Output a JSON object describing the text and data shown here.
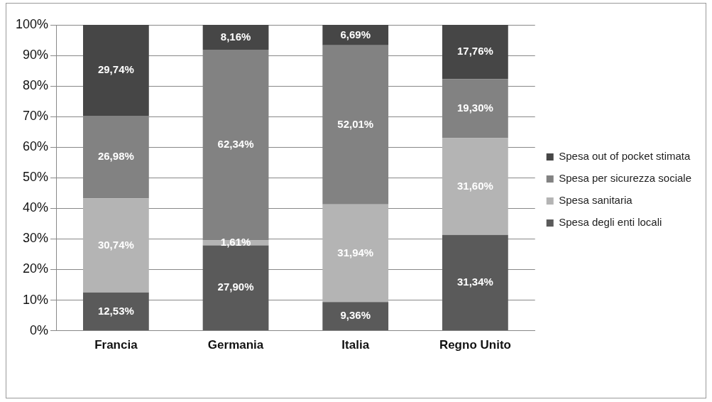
{
  "chart_data": {
    "type": "bar",
    "stacked": true,
    "categories": [
      "Francia",
      "Germania",
      "Italia",
      "Regno Unito"
    ],
    "series": [
      {
        "name": "Spesa degli enti locali",
        "color": "#5a5a5a",
        "values": [
          12.53,
          27.9,
          9.36,
          31.34
        ],
        "value_labels": [
          "12,53%",
          "27,90%",
          "9,36%",
          "31,34%"
        ]
      },
      {
        "name": "Spesa sanitaria",
        "color": "#b4b4b4",
        "values": [
          30.74,
          1.61,
          31.94,
          31.6
        ],
        "value_labels": [
          "30,74%",
          "1,61%",
          "31,94%",
          "31,60%"
        ]
      },
      {
        "name": "Spesa per sicurezza sociale",
        "color": "#828282",
        "values": [
          26.98,
          62.34,
          52.01,
          19.3
        ],
        "value_labels": [
          "26,98%",
          "62,34%",
          "52,01%",
          "19,30%"
        ]
      },
      {
        "name": "Spesa out of pocket stimata",
        "color": "#464646",
        "values": [
          29.74,
          8.16,
          6.69,
          17.76
        ],
        "value_labels": [
          "29,74%",
          "8,16%",
          "6,69%",
          "17,76%"
        ]
      }
    ],
    "ylim": [
      0,
      100
    ],
    "yticks": [
      {
        "value": 0,
        "label": "0%"
      },
      {
        "value": 10,
        "label": "10%"
      },
      {
        "value": 20,
        "label": "20%"
      },
      {
        "value": 30,
        "label": "30%"
      },
      {
        "value": 40,
        "label": "40%"
      },
      {
        "value": 50,
        "label": "50%"
      },
      {
        "value": 60,
        "label": "60%"
      },
      {
        "value": 70,
        "label": "70%"
      },
      {
        "value": 80,
        "label": "80%"
      },
      {
        "value": 90,
        "label": "90%"
      },
      {
        "value": 100,
        "label": "100%"
      }
    ],
    "grid": "y",
    "legend": "right"
  }
}
